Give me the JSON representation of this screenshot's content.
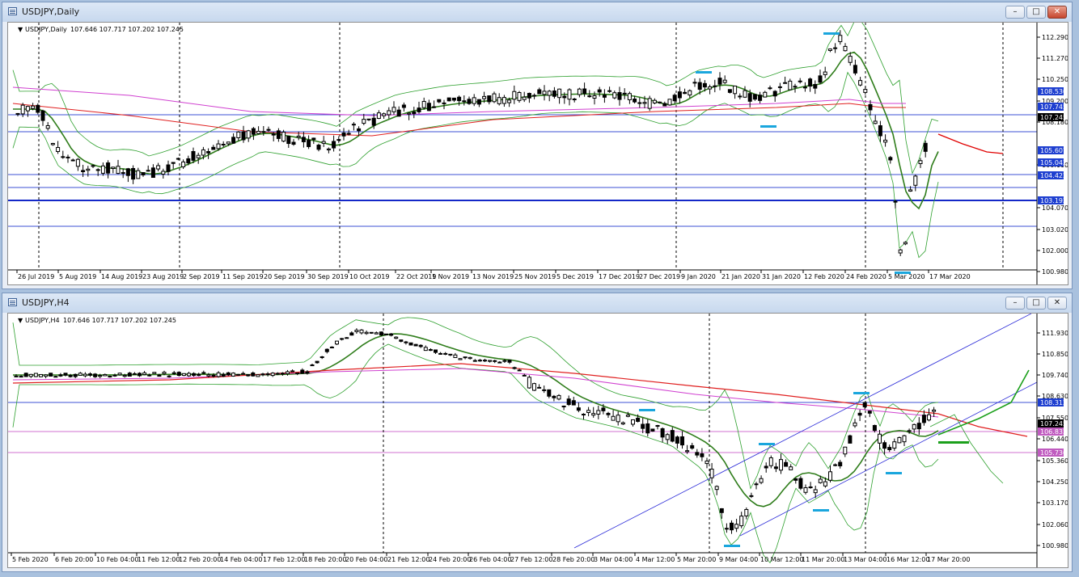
{
  "windows": [
    {
      "title": "USDJPY,Daily",
      "info_label": "USDJPY,Daily",
      "info_ohlc": "107.646 107.717 107.202 107.245",
      "buttons": {
        "minimize": "–",
        "maximize": "□",
        "close": "✕"
      },
      "price_ticks": [
        "112.290",
        "111.270",
        "110.250",
        "109.200",
        "108.180",
        "106.110",
        "104.070",
        "103.020",
        "102.000",
        "100.980"
      ],
      "price_tags": [
        {
          "label": "108.530",
          "color": "#1e3fd0"
        },
        {
          "label": "107.745",
          "color": "#1e3fd0"
        },
        {
          "label": "107.245",
          "color": "#000000"
        },
        {
          "label": "105.607",
          "color": "#1e3fd0"
        },
        {
          "label": "105.042",
          "color": "#1e3fd0"
        },
        {
          "label": "104.422",
          "color": "#1e3fd0"
        },
        {
          "label": "103.192",
          "color": "#1e3fd0"
        }
      ],
      "time_labels": [
        "26 Jul 2019",
        "5 Aug 2019",
        "14 Aug 2019",
        "23 Aug 2019",
        "2 Sep 2019",
        "11 Sep 2019",
        "20 Sep 2019",
        "30 Sep 2019",
        "10 Oct 2019",
        "22 Oct 2019",
        "1 Nov 2019",
        "13 Nov 2019",
        "25 Nov 2019",
        "5 Dec 2019",
        "17 Dec 2019",
        "27 Dec 2019",
        "9 Jan 2020",
        "21 Jan 2020",
        "31 Jan 2020",
        "12 Feb 2020",
        "24 Feb 2020",
        "5 Mar 2020",
        "17 Mar 2020"
      ]
    },
    {
      "title": "USDJPY,H4",
      "info_label": "USDJPY,H4",
      "info_ohlc": "107.646 107.717 107.202 107.245",
      "buttons": {
        "minimize": "–",
        "maximize": "□",
        "close": "✕"
      },
      "price_ticks": [
        "111.930",
        "110.850",
        "109.740",
        "108.630",
        "107.550",
        "106.440",
        "105.360",
        "104.250",
        "103.170",
        "102.060",
        "100.980"
      ],
      "price_tags": [
        {
          "label": "108.312",
          "color": "#1e3fd0"
        },
        {
          "label": "107.245",
          "color": "#000000"
        },
        {
          "label": "106.832",
          "color": "#c05cc0"
        },
        {
          "label": "105.736",
          "color": "#c05cc0"
        }
      ],
      "time_labels": [
        "5 Feb 2020",
        "6 Feb 20:00",
        "10 Feb 04:00",
        "11 Feb 12:00",
        "12 Feb 20:00",
        "14 Feb 04:00",
        "17 Feb 12:00",
        "18 Feb 20:00",
        "20 Feb 04:00",
        "21 Feb 12:00",
        "24 Feb 20:00",
        "26 Feb 04:00",
        "27 Feb 12:00",
        "28 Feb 20:00",
        "3 Mar 04:00",
        "4 Mar 12:00",
        "5 Mar 20:00",
        "9 Mar 04:00",
        "10 Mar 12:00",
        "11 Mar 20:00",
        "13 Mar 04:00",
        "16 Mar 12:00",
        "17 Mar 20:00"
      ]
    }
  ]
}
